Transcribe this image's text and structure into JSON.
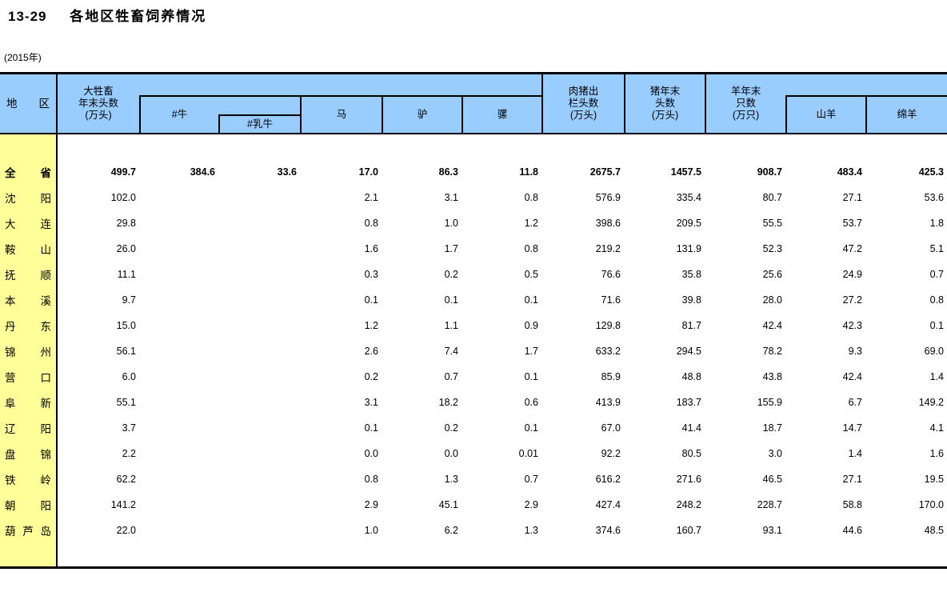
{
  "page": {
    "title_num": "13-29",
    "title_text": "各地区牲畜饲养情况",
    "year_note": "(2015年)"
  },
  "colors": {
    "header_bg": "#99CCFF",
    "region_col_bg": "#FFFF99",
    "border": "#000000",
    "text": "#000000"
  },
  "table": {
    "header": {
      "region": "地区",
      "large_livestock": "大牲畜\n年末头数\n(万头)",
      "cattle": "#牛",
      "dairy_cattle": "#乳牛",
      "horses": "马",
      "donkeys": "驴",
      "mules": "骡",
      "hogs_slaughtered": "肉猪出\n栏头数\n(万头)",
      "pigs_yearend": "猪年末\n头数\n(万头)",
      "sheep_goats_yearend": "羊年末\n只数\n(万只)",
      "goats": "山羊",
      "sheep": "绵羊"
    },
    "rows": [
      {
        "region": "全省",
        "bold": true,
        "values": [
          "499.7",
          "384.6",
          "33.6",
          "17.0",
          "86.3",
          "11.8",
          "2675.7",
          "1457.5",
          "908.7",
          "483.4",
          "425.3"
        ]
      },
      {
        "region": "沈阳",
        "bold": false,
        "values": [
          "102.0",
          "",
          "",
          "2.1",
          "3.1",
          "0.8",
          "576.9",
          "335.4",
          "80.7",
          "27.1",
          "53.6"
        ]
      },
      {
        "region": "大连",
        "bold": false,
        "values": [
          "29.8",
          "",
          "",
          "0.8",
          "1.0",
          "1.2",
          "398.6",
          "209.5",
          "55.5",
          "53.7",
          "1.8"
        ]
      },
      {
        "region": "鞍山",
        "bold": false,
        "values": [
          "26.0",
          "",
          "",
          "1.6",
          "1.7",
          "0.8",
          "219.2",
          "131.9",
          "52.3",
          "47.2",
          "5.1"
        ]
      },
      {
        "region": "抚顺",
        "bold": false,
        "values": [
          "11.1",
          "",
          "",
          "0.3",
          "0.2",
          "0.5",
          "76.6",
          "35.8",
          "25.6",
          "24.9",
          "0.7"
        ]
      },
      {
        "region": "本溪",
        "bold": false,
        "values": [
          "9.7",
          "",
          "",
          "0.1",
          "0.1",
          "0.1",
          "71.6",
          "39.8",
          "28.0",
          "27.2",
          "0.8"
        ]
      },
      {
        "region": "丹东",
        "bold": false,
        "values": [
          "15.0",
          "",
          "",
          "1.2",
          "1.1",
          "0.9",
          "129.8",
          "81.7",
          "42.4",
          "42.3",
          "0.1"
        ]
      },
      {
        "region": "锦州",
        "bold": false,
        "values": [
          "56.1",
          "",
          "",
          "2.6",
          "7.4",
          "1.7",
          "633.2",
          "294.5",
          "78.2",
          "9.3",
          "69.0"
        ]
      },
      {
        "region": "营口",
        "bold": false,
        "values": [
          "6.0",
          "",
          "",
          "0.2",
          "0.7",
          "0.1",
          "85.9",
          "48.8",
          "43.8",
          "42.4",
          "1.4"
        ]
      },
      {
        "region": "阜新",
        "bold": false,
        "values": [
          "55.1",
          "",
          "",
          "3.1",
          "18.2",
          "0.6",
          "413.9",
          "183.7",
          "155.9",
          "6.7",
          "149.2"
        ]
      },
      {
        "region": "辽阳",
        "bold": false,
        "values": [
          "3.7",
          "",
          "",
          "0.1",
          "0.2",
          "0.1",
          "67.0",
          "41.4",
          "18.7",
          "14.7",
          "4.1"
        ]
      },
      {
        "region": "盘锦",
        "bold": false,
        "values": [
          "2.2",
          "",
          "",
          "0.0",
          "0.0",
          "0.01",
          "92.2",
          "80.5",
          "3.0",
          "1.4",
          "1.6"
        ]
      },
      {
        "region": "铁岭",
        "bold": false,
        "values": [
          "62.2",
          "",
          "",
          "0.8",
          "1.3",
          "0.7",
          "616.2",
          "271.6",
          "46.5",
          "27.1",
          "19.5"
        ]
      },
      {
        "region": "朝阳",
        "bold": false,
        "values": [
          "141.2",
          "",
          "",
          "2.9",
          "45.1",
          "2.9",
          "427.4",
          "248.2",
          "228.7",
          "58.8",
          "170.0"
        ]
      },
      {
        "region": "葫芦岛",
        "bold": false,
        "values": [
          "22.0",
          "",
          "",
          "1.0",
          "6.2",
          "1.3",
          "374.6",
          "160.7",
          "93.1",
          "44.6",
          "48.5"
        ]
      }
    ]
  }
}
